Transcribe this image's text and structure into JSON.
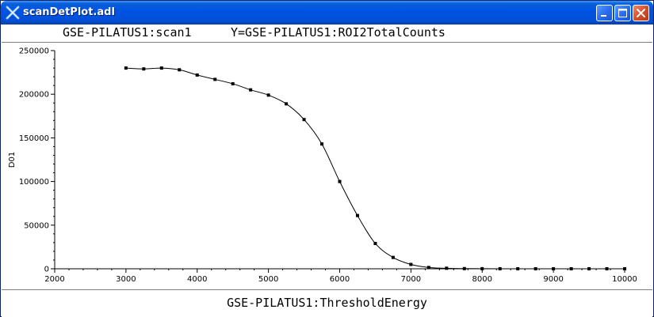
{
  "window": {
    "title": "scanDetPlot.adl",
    "icon": "x-icon",
    "controls": [
      "minimize-icon",
      "maximize-icon",
      "close-icon"
    ]
  },
  "header": {
    "scan_label": "GSE-PILATUS1:scan1",
    "y_label": "Y=GSE-PILATUS1:ROI2TotalCounts"
  },
  "footer": {
    "x_label": "GSE-PILATUS1:ThresholdEnergy"
  },
  "chart_data": {
    "type": "line",
    "ylabel": "D01",
    "xlim": [
      2000,
      10000
    ],
    "ylim": [
      0,
      250000
    ],
    "x_ticks": [
      "2000",
      "3000",
      "4000",
      "5000",
      "6000",
      "7000",
      "8000",
      "9000",
      "10000"
    ],
    "y_ticks": [
      "0",
      "50000",
      "100000",
      "150000",
      "200000",
      "250000"
    ],
    "grid": false,
    "line_color": "#000000",
    "series": [
      {
        "x": [
          3000,
          3250,
          3500,
          3750,
          4000,
          4250,
          4500,
          4750,
          5000,
          5250,
          5500,
          5750,
          6000,
          6250,
          6500,
          6750,
          7000,
          7250,
          7500,
          7750,
          8000,
          8250,
          8500,
          8750,
          9000,
          9250,
          9500,
          9750,
          10000
        ],
        "y": [
          230000,
          229000,
          230000,
          228000,
          222000,
          217000,
          212000,
          205000,
          199000,
          189000,
          171000,
          143000,
          100000,
          61000,
          29000,
          13000,
          5000,
          1500,
          600,
          200,
          100,
          50,
          20,
          10,
          5,
          0,
          0,
          0,
          0
        ]
      }
    ]
  }
}
